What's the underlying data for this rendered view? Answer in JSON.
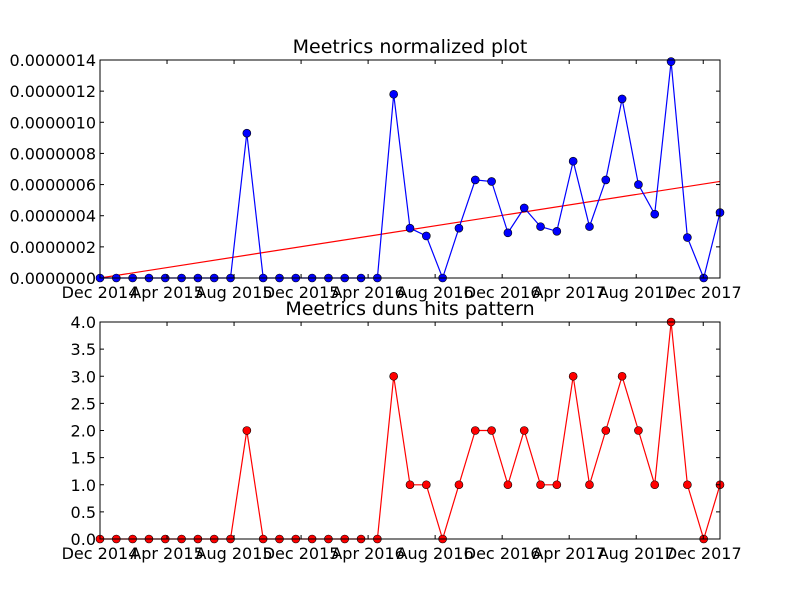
{
  "chart_data": [
    {
      "type": "line",
      "title": "Meetrics normalized plot",
      "xlabel": "",
      "ylabel": "",
      "ylim": [
        0,
        1.4e-06
      ],
      "x_tick_labels": [
        "Dec 2014",
        "Apr 2015",
        "Aug 2015",
        "Dec 2015",
        "Apr 2016",
        "Aug 2016",
        "Dec 2016",
        "Apr 2017",
        "Aug 2017",
        "Dec 2017"
      ],
      "y_tick_labels": [
        "0.0000000",
        "0.0000002",
        "0.0000004",
        "0.0000006",
        "0.0000008",
        "0.0000010",
        "0.0000012",
        "0.0000014"
      ],
      "y_ticks": [
        0,
        2e-07,
        4e-07,
        6e-07,
        8e-07,
        1e-06,
        1.2e-06,
        1.4e-06
      ],
      "series_color": "#0000ff",
      "trend_color": "#ff0000",
      "values": [
        0,
        0,
        0,
        0,
        0,
        0,
        0,
        0,
        0,
        9.3e-07,
        0,
        0,
        0,
        0,
        0,
        0,
        0,
        0,
        1.18e-06,
        3.2e-07,
        2.7e-07,
        0,
        3.2e-07,
        6.3e-07,
        6.2e-07,
        2.9e-07,
        4.5e-07,
        3.3e-07,
        3e-07,
        7.5e-07,
        3.3e-07,
        6.3e-07,
        1.15e-06,
        6e-07,
        4.1e-07,
        1.39e-06,
        2.6e-07,
        0,
        4.2e-07
      ],
      "trend": [
        0,
        6.2e-07
      ],
      "grid": false
    },
    {
      "type": "line",
      "title": "Meetrics duns hits pattern",
      "xlabel": "",
      "ylabel": "",
      "ylim": [
        0,
        4
      ],
      "x_tick_labels": [
        "Dec 2014",
        "Apr 2015",
        "Aug 2015",
        "Dec 2015",
        "Apr 2016",
        "Aug 2016",
        "Dec 2016",
        "Apr 2017",
        "Aug 2017",
        "Dec 2017"
      ],
      "y_tick_labels": [
        "0.0",
        "0.5",
        "1.0",
        "1.5",
        "2.0",
        "2.5",
        "3.0",
        "3.5",
        "4.0"
      ],
      "y_ticks": [
        0,
        0.5,
        1,
        1.5,
        2,
        2.5,
        3,
        3.5,
        4
      ],
      "series_color": "#ff0000",
      "values": [
        0,
        0,
        0,
        0,
        0,
        0,
        0,
        0,
        0,
        2,
        0,
        0,
        0,
        0,
        0,
        0,
        0,
        0,
        3,
        1,
        1,
        0,
        1,
        2,
        2,
        1,
        2,
        1,
        1,
        3,
        1,
        2,
        3,
        2,
        1,
        4,
        1,
        0,
        1
      ],
      "grid": false
    }
  ]
}
